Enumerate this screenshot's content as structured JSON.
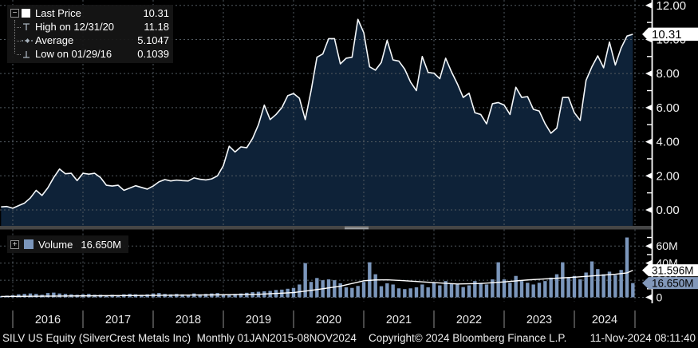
{
  "colors": {
    "background": "#000000",
    "area_fill": "#0e2238",
    "price_line": "#f5f8fa",
    "grid": "#51595f",
    "volume_bar": "#7b96bb",
    "volume_avg_line": "#ffffff",
    "badge_white_bg": "#ffffff",
    "badge_blue_bg": "#8298ba",
    "axis_text": "#f2f2f2",
    "legend_bg": "#161616"
  },
  "price_legend": {
    "expand_glyph": "−",
    "rows": [
      {
        "icon": "last-price-swatch",
        "label": "Last Price",
        "value": "10.31"
      },
      {
        "icon": "high-marker",
        "label": "High on 12/31/20",
        "value": "11.18"
      },
      {
        "icon": "average-marker",
        "label": "Average",
        "value": "5.1047"
      },
      {
        "icon": "low-marker",
        "label": "Low on 01/29/16",
        "value": "0.1039"
      }
    ]
  },
  "volume_legend": {
    "expand_glyph": "+",
    "label": "Volume",
    "value": "16.650M"
  },
  "price_axis": {
    "ticks": [
      {
        "label": "12.00",
        "value": 12
      },
      {
        "label": "10.00",
        "value": 10
      },
      {
        "label": "8.00",
        "value": 8
      },
      {
        "label": "6.00",
        "value": 6
      },
      {
        "label": "4.00",
        "value": 4
      },
      {
        "label": "2.00",
        "value": 2
      },
      {
        "label": "0.00",
        "value": 0
      }
    ],
    "minor_values": [
      11,
      9,
      7,
      5,
      3,
      1
    ],
    "last_price_badge": "10.31"
  },
  "volume_axis": {
    "ticks": [
      {
        "label": "60M",
        "value": 60
      },
      {
        "label": "40M",
        "value": 40
      },
      {
        "label": "20M",
        "value": 20
      },
      {
        "label": "0",
        "value": 0
      }
    ],
    "minor_values": [
      70,
      50,
      30,
      10
    ],
    "badges": [
      {
        "label": "31.596M",
        "style": "white",
        "value": 31.596
      },
      {
        "label": "16.650M",
        "style": "blue",
        "value": 16.65
      }
    ]
  },
  "x_axis": {
    "years": [
      "2016",
      "2017",
      "2018",
      "2019",
      "2020",
      "2021",
      "2022",
      "2023",
      "2024"
    ]
  },
  "footer": {
    "left": "SILV US Equity (SilverCrest Metals Inc)  Monthly 01JAN2015-08NOV2024",
    "center": "Copyright© 2024 Bloomberg Finance L.P.",
    "right": "11-Nov-2024 08:11:40"
  },
  "chart_data": [
    {
      "type": "area",
      "name": "SILV US Equity Last Price",
      "frequency": "monthly",
      "start_month": "2015-11",
      "end_month": "2024-11",
      "ylim": [
        0,
        12.4
      ],
      "yticks": [
        0,
        2,
        4,
        6,
        8,
        10,
        12
      ],
      "legend": {
        "last_price": 10.31,
        "high_on": "12/31/20",
        "high": 11.18,
        "average": 5.1047,
        "low_on": "01/29/16",
        "low": 0.1039
      },
      "values": [
        0.18,
        0.2,
        0.1,
        0.25,
        0.4,
        0.7,
        1.15,
        0.85,
        1.3,
        1.9,
        2.4,
        2.12,
        2.15,
        1.72,
        2.15,
        2.1,
        2.15,
        1.9,
        1.45,
        1.4,
        1.45,
        1.15,
        1.28,
        1.42,
        1.32,
        1.22,
        1.4,
        1.65,
        1.78,
        1.7,
        1.75,
        1.72,
        1.7,
        1.88,
        1.8,
        1.76,
        1.82,
        2.0,
        2.6,
        3.74,
        3.4,
        3.7,
        3.65,
        4.2,
        5.0,
        6.15,
        5.3,
        5.6,
        6.0,
        6.7,
        6.83,
        6.55,
        5.3,
        7.0,
        8.96,
        9.15,
        10.05,
        10.05,
        8.57,
        8.9,
        8.96,
        11.18,
        10.4,
        8.4,
        8.2,
        8.65,
        9.95,
        8.8,
        8.73,
        8.26,
        7.5,
        7.0,
        9.0,
        8.07,
        8.02,
        7.7,
        8.9,
        8.1,
        7.4,
        6.6,
        6.85,
        5.7,
        5.6,
        5.05,
        6.23,
        6.3,
        6.15,
        5.6,
        7.2,
        6.6,
        6.65,
        5.9,
        5.8,
        5.06,
        4.5,
        4.8,
        6.6,
        6.6,
        5.7,
        5.25,
        7.6,
        8.4,
        9.04,
        8.34,
        9.85,
        8.5,
        9.5,
        10.2,
        10.31
      ]
    },
    {
      "type": "bar",
      "name": "Volume",
      "unit": "millions",
      "frequency": "monthly",
      "start_month": "2015-11",
      "end_month": "2024-11",
      "ylim": [
        0,
        78
      ],
      "yticks": [
        0,
        20,
        40,
        60
      ],
      "current": 16.65,
      "moving_average_last": 31.596,
      "values": [
        1.5,
        2,
        2.5,
        3.5,
        4,
        4.5,
        4,
        3,
        5,
        5.5,
        4.5,
        4,
        3.5,
        3,
        3.5,
        4,
        3,
        3,
        2.5,
        3,
        2.5,
        3.5,
        4,
        3.5,
        3,
        3.5,
        4.5,
        5,
        4,
        3.5,
        4,
        3.5,
        3,
        4.5,
        3.5,
        4,
        4.5,
        5,
        3,
        3.5,
        4,
        4.5,
        5.3,
        6,
        6.5,
        7,
        7.5,
        8.6,
        9,
        10,
        11,
        15,
        40,
        18,
        22.6,
        20,
        21,
        20,
        16.4,
        11.7,
        11,
        13.3,
        18,
        41,
        27,
        13,
        16.4,
        15,
        10.5,
        9.6,
        10.5,
        11.7,
        15,
        11.7,
        17,
        14,
        19,
        16,
        15,
        12,
        14,
        19,
        17,
        15,
        21,
        41,
        21,
        17,
        25,
        19,
        17,
        15,
        17,
        19,
        23,
        27,
        41,
        23,
        25,
        21,
        29,
        42,
        33,
        27,
        30,
        26,
        32,
        70,
        16.65
      ],
      "avg_line_points": [
        [
          0,
          1.0
        ],
        [
          12,
          1.6
        ],
        [
          24,
          2.2
        ],
        [
          36,
          2.8
        ],
        [
          44,
          3.6
        ],
        [
          48,
          4.8
        ],
        [
          50,
          5.5
        ],
        [
          54,
          9
        ],
        [
          58,
          13
        ],
        [
          62,
          19.3
        ],
        [
          64,
          20.3
        ],
        [
          66,
          20.5
        ],
        [
          70,
          19
        ],
        [
          74,
          17.2
        ],
        [
          78,
          15.6
        ],
        [
          82,
          16.2
        ],
        [
          86,
          18
        ],
        [
          90,
          20.3
        ],
        [
          94,
          22
        ],
        [
          98,
          23.5
        ],
        [
          102,
          25.5
        ],
        [
          105,
          27
        ],
        [
          107,
          28.5
        ],
        [
          108,
          31.596
        ]
      ]
    }
  ]
}
